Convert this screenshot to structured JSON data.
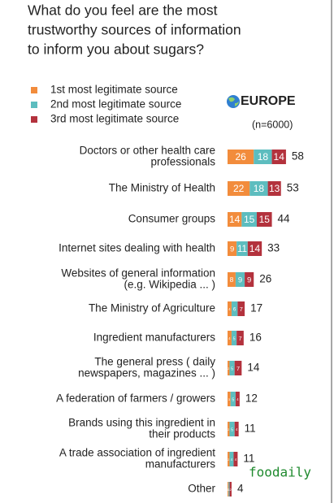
{
  "chart_data": {
    "type": "stacked-bar",
    "orientation": "horizontal",
    "title": [
      "What do you feel are the most",
      "trustworthy sources of information",
      "to inform you about sugars?"
    ],
    "region": "EUROPE",
    "sample": "(n=6000)",
    "watermark": "foodaily",
    "categories": [
      [
        "Doctors or other health care",
        "professionals"
      ],
      [
        "The Ministry of Health"
      ],
      [
        "Consumer groups"
      ],
      [
        "Internet sites dealing with health"
      ],
      [
        "Websites of general information",
        "(e.g. Wikipedia ... )"
      ],
      [
        "The Ministry of Agriculture"
      ],
      [
        "Ingredient manufacturers"
      ],
      [
        "The general press ( daily",
        "newspapers, magazines ... )"
      ],
      [
        "A federation of farmers / growers"
      ],
      [
        "Brands using this ingredient in",
        "their products"
      ],
      [
        "A trade association of ingredient",
        "manufacturers"
      ],
      [
        "Other"
      ]
    ],
    "series": [
      {
        "name": "1st most legitimate source",
        "color": "#f28c3c",
        "values": [
          26,
          22,
          14,
          9,
          8,
          4,
          4,
          2,
          3,
          2,
          2,
          1
        ]
      },
      {
        "name": "2nd most legitimate source",
        "color": "#5dbdbf",
        "values": [
          18,
          18,
          15,
          11,
          9,
          6,
          5,
          5,
          5,
          5,
          4,
          1
        ]
      },
      {
        "name": "3rd most legitimate source",
        "color": "#b3323d",
        "values": [
          14,
          13,
          15,
          14,
          9,
          7,
          7,
          7,
          4,
          4,
          4,
          2
        ]
      }
    ],
    "totals": [
      58,
      53,
      44,
      33,
      26,
      17,
      16,
      14,
      12,
      11,
      11,
      4
    ],
    "xlim": [
      0,
      100
    ]
  }
}
